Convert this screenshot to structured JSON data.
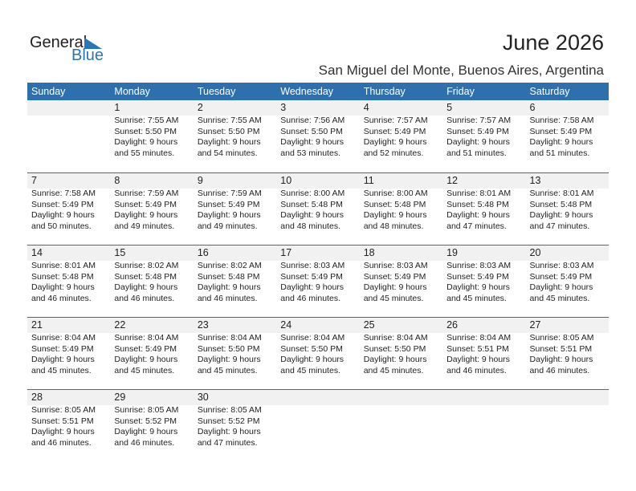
{
  "logo": {
    "general": "General",
    "blue": "Blue"
  },
  "title": "June 2026",
  "location": "San Miguel del Monte, Buenos Aires, Argentina",
  "weekdays": [
    "Sunday",
    "Monday",
    "Tuesday",
    "Wednesday",
    "Thursday",
    "Friday",
    "Saturday"
  ],
  "weeks": [
    [
      null,
      {
        "day": "1",
        "sunrise": "Sunrise: 7:55 AM",
        "sunset": "Sunset: 5:50 PM",
        "daylight": "Daylight: 9 hours",
        "minutes": "and 55 minutes."
      },
      {
        "day": "2",
        "sunrise": "Sunrise: 7:55 AM",
        "sunset": "Sunset: 5:50 PM",
        "daylight": "Daylight: 9 hours",
        "minutes": "and 54 minutes."
      },
      {
        "day": "3",
        "sunrise": "Sunrise: 7:56 AM",
        "sunset": "Sunset: 5:50 PM",
        "daylight": "Daylight: 9 hours",
        "minutes": "and 53 minutes."
      },
      {
        "day": "4",
        "sunrise": "Sunrise: 7:57 AM",
        "sunset": "Sunset: 5:49 PM",
        "daylight": "Daylight: 9 hours",
        "minutes": "and 52 minutes."
      },
      {
        "day": "5",
        "sunrise": "Sunrise: 7:57 AM",
        "sunset": "Sunset: 5:49 PM",
        "daylight": "Daylight: 9 hours",
        "minutes": "and 51 minutes."
      },
      {
        "day": "6",
        "sunrise": "Sunrise: 7:58 AM",
        "sunset": "Sunset: 5:49 PM",
        "daylight": "Daylight: 9 hours",
        "minutes": "and 51 minutes."
      }
    ],
    [
      {
        "day": "7",
        "sunrise": "Sunrise: 7:58 AM",
        "sunset": "Sunset: 5:49 PM",
        "daylight": "Daylight: 9 hours",
        "minutes": "and 50 minutes."
      },
      {
        "day": "8",
        "sunrise": "Sunrise: 7:59 AM",
        "sunset": "Sunset: 5:49 PM",
        "daylight": "Daylight: 9 hours",
        "minutes": "and 49 minutes."
      },
      {
        "day": "9",
        "sunrise": "Sunrise: 7:59 AM",
        "sunset": "Sunset: 5:49 PM",
        "daylight": "Daylight: 9 hours",
        "minutes": "and 49 minutes."
      },
      {
        "day": "10",
        "sunrise": "Sunrise: 8:00 AM",
        "sunset": "Sunset: 5:48 PM",
        "daylight": "Daylight: 9 hours",
        "minutes": "and 48 minutes."
      },
      {
        "day": "11",
        "sunrise": "Sunrise: 8:00 AM",
        "sunset": "Sunset: 5:48 PM",
        "daylight": "Daylight: 9 hours",
        "minutes": "and 48 minutes."
      },
      {
        "day": "12",
        "sunrise": "Sunrise: 8:01 AM",
        "sunset": "Sunset: 5:48 PM",
        "daylight": "Daylight: 9 hours",
        "minutes": "and 47 minutes."
      },
      {
        "day": "13",
        "sunrise": "Sunrise: 8:01 AM",
        "sunset": "Sunset: 5:48 PM",
        "daylight": "Daylight: 9 hours",
        "minutes": "and 47 minutes."
      }
    ],
    [
      {
        "day": "14",
        "sunrise": "Sunrise: 8:01 AM",
        "sunset": "Sunset: 5:48 PM",
        "daylight": "Daylight: 9 hours",
        "minutes": "and 46 minutes."
      },
      {
        "day": "15",
        "sunrise": "Sunrise: 8:02 AM",
        "sunset": "Sunset: 5:48 PM",
        "daylight": "Daylight: 9 hours",
        "minutes": "and 46 minutes."
      },
      {
        "day": "16",
        "sunrise": "Sunrise: 8:02 AM",
        "sunset": "Sunset: 5:48 PM",
        "daylight": "Daylight: 9 hours",
        "minutes": "and 46 minutes."
      },
      {
        "day": "17",
        "sunrise": "Sunrise: 8:03 AM",
        "sunset": "Sunset: 5:49 PM",
        "daylight": "Daylight: 9 hours",
        "minutes": "and 46 minutes."
      },
      {
        "day": "18",
        "sunrise": "Sunrise: 8:03 AM",
        "sunset": "Sunset: 5:49 PM",
        "daylight": "Daylight: 9 hours",
        "minutes": "and 45 minutes."
      },
      {
        "day": "19",
        "sunrise": "Sunrise: 8:03 AM",
        "sunset": "Sunset: 5:49 PM",
        "daylight": "Daylight: 9 hours",
        "minutes": "and 45 minutes."
      },
      {
        "day": "20",
        "sunrise": "Sunrise: 8:03 AM",
        "sunset": "Sunset: 5:49 PM",
        "daylight": "Daylight: 9 hours",
        "minutes": "and 45 minutes."
      }
    ],
    [
      {
        "day": "21",
        "sunrise": "Sunrise: 8:04 AM",
        "sunset": "Sunset: 5:49 PM",
        "daylight": "Daylight: 9 hours",
        "minutes": "and 45 minutes."
      },
      {
        "day": "22",
        "sunrise": "Sunrise: 8:04 AM",
        "sunset": "Sunset: 5:49 PM",
        "daylight": "Daylight: 9 hours",
        "minutes": "and 45 minutes."
      },
      {
        "day": "23",
        "sunrise": "Sunrise: 8:04 AM",
        "sunset": "Sunset: 5:50 PM",
        "daylight": "Daylight: 9 hours",
        "minutes": "and 45 minutes."
      },
      {
        "day": "24",
        "sunrise": "Sunrise: 8:04 AM",
        "sunset": "Sunset: 5:50 PM",
        "daylight": "Daylight: 9 hours",
        "minutes": "and 45 minutes."
      },
      {
        "day": "25",
        "sunrise": "Sunrise: 8:04 AM",
        "sunset": "Sunset: 5:50 PM",
        "daylight": "Daylight: 9 hours",
        "minutes": "and 45 minutes."
      },
      {
        "day": "26",
        "sunrise": "Sunrise: 8:04 AM",
        "sunset": "Sunset: 5:51 PM",
        "daylight": "Daylight: 9 hours",
        "minutes": "and 46 minutes."
      },
      {
        "day": "27",
        "sunrise": "Sunrise: 8:05 AM",
        "sunset": "Sunset: 5:51 PM",
        "daylight": "Daylight: 9 hours",
        "minutes": "and 46 minutes."
      }
    ],
    [
      {
        "day": "28",
        "sunrise": "Sunrise: 8:05 AM",
        "sunset": "Sunset: 5:51 PM",
        "daylight": "Daylight: 9 hours",
        "minutes": "and 46 minutes."
      },
      {
        "day": "29",
        "sunrise": "Sunrise: 8:05 AM",
        "sunset": "Sunset: 5:52 PM",
        "daylight": "Daylight: 9 hours",
        "minutes": "and 46 minutes."
      },
      {
        "day": "30",
        "sunrise": "Sunrise: 8:05 AM",
        "sunset": "Sunset: 5:52 PM",
        "daylight": "Daylight: 9 hours",
        "minutes": "and 47 minutes."
      },
      null,
      null,
      null,
      null
    ]
  ],
  "colors": {
    "header": "#2e6fad",
    "band": "#f1f1f1",
    "logo_blue": "#2a74b8"
  }
}
